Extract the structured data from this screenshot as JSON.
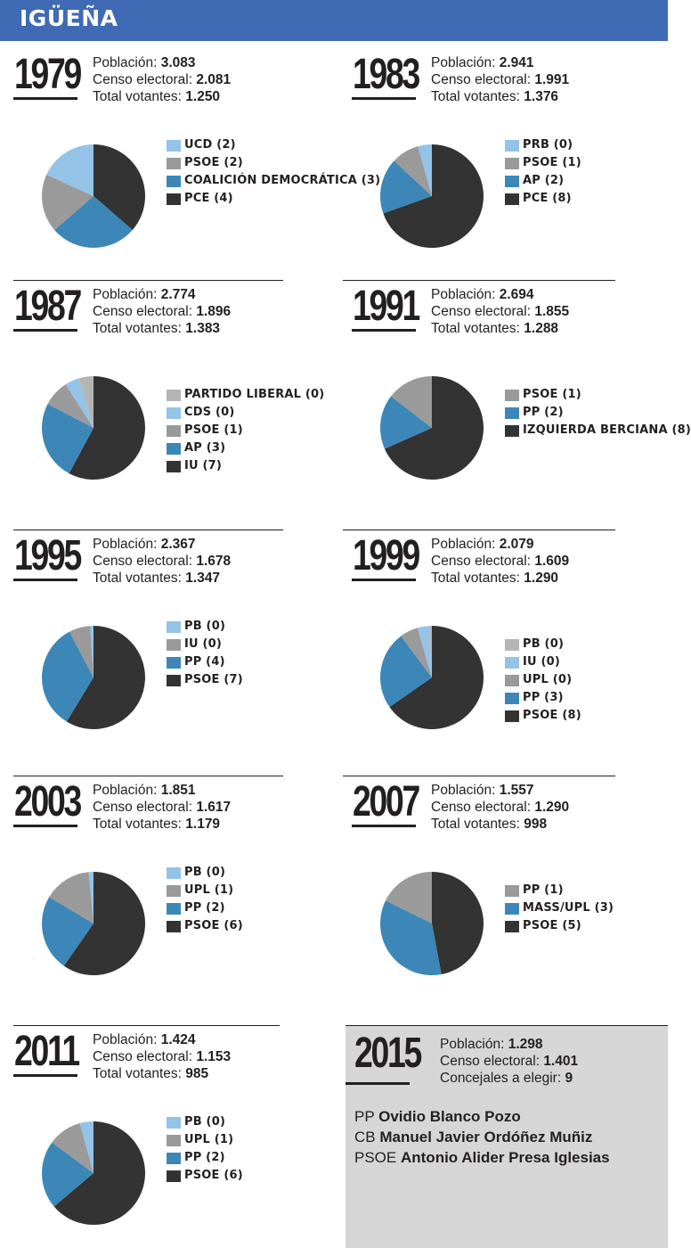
{
  "header": {
    "title": "IGÜEÑA"
  },
  "labels": {
    "poblacion": "Población:",
    "censo": "Censo electoral:",
    "votantes": "Total votantes:",
    "concejales": "Concejales a elegir:"
  },
  "colors": {
    "banner": "#3f6ab4",
    "light_blue": "#94c3e8",
    "light_gray": "#b5b5b5",
    "gray": "#9a9a9a",
    "mid_blue": "#3c87b8",
    "dark": "#333333",
    "panel_2015": "#d6d6d6"
  },
  "chart_data": [
    {
      "type": "pie",
      "year": "1979",
      "poblacion": "3.083",
      "censo": "2.081",
      "votantes": "1.250",
      "slices": [
        {
          "label": "UCD (2)",
          "value": 2,
          "color": "#94c3e8"
        },
        {
          "label": "PSOE (2)",
          "value": 2,
          "color": "#9a9a9a"
        },
        {
          "label": "COALICIÓN DEMOCRÁTICA (3)",
          "value": 3,
          "color": "#3c87b8"
        },
        {
          "label": "PCE (4)",
          "value": 4,
          "color": "#333333"
        }
      ]
    },
    {
      "type": "pie",
      "year": "1983",
      "poblacion": "2.941",
      "censo": "1.991",
      "votantes": "1.376",
      "slices": [
        {
          "label": "PRB (0)",
          "value": 0.5,
          "color": "#94c3e8"
        },
        {
          "label": "PSOE (1)",
          "value": 1,
          "color": "#9a9a9a"
        },
        {
          "label": "AP (2)",
          "value": 2,
          "color": "#3c87b8"
        },
        {
          "label": "PCE (8)",
          "value": 8,
          "color": "#333333"
        }
      ]
    },
    {
      "type": "pie",
      "year": "1987",
      "poblacion": "2.774",
      "censo": "1.896",
      "votantes": "1.383",
      "slices": [
        {
          "label": "PARTIDO LIBERAL (0)",
          "value": 0.55,
          "color": "#b5b5b5"
        },
        {
          "label": "CDS (0)",
          "value": 0.55,
          "color": "#94c3e8"
        },
        {
          "label": "PSOE (1)",
          "value": 1,
          "color": "#9a9a9a"
        },
        {
          "label": "AP (3)",
          "value": 3,
          "color": "#3c87b8"
        },
        {
          "label": "IU (7)",
          "value": 7,
          "color": "#333333"
        }
      ]
    },
    {
      "type": "pie",
      "year": "1991",
      "poblacion": "2.694",
      "censo": "1.855",
      "votantes": "1.288",
      "slices": [
        {
          "label": "PSOE (1)",
          "value": 1.7,
          "color": "#9a9a9a"
        },
        {
          "label": "PP (2)",
          "value": 2,
          "color": "#3c87b8"
        },
        {
          "label": "IZQUIERDA BERCIANA (8)",
          "value": 8,
          "color": "#333333"
        }
      ]
    },
    {
      "type": "pie",
      "year": "1995",
      "poblacion": "2.367",
      "censo": "1.678",
      "votantes": "1.347",
      "slices": [
        {
          "label": "PB (0)",
          "value": 0.12,
          "color": "#94c3e8"
        },
        {
          "label": "IU (0)",
          "value": 0.8,
          "color": "#9a9a9a"
        },
        {
          "label": "PP (4)",
          "value": 4,
          "color": "#3c87b8"
        },
        {
          "label": "PSOE (7)",
          "value": 7,
          "color": "#333333"
        }
      ]
    },
    {
      "type": "pie",
      "year": "1999",
      "poblacion": "2.079",
      "censo": "1.609",
      "votantes": "1.290",
      "slices": [
        {
          "label": "PB (0)",
          "value": 0.1,
          "color": "#b5b5b5"
        },
        {
          "label": "IU (0)",
          "value": 0.45,
          "color": "#94c3e8"
        },
        {
          "label": "UPL (0)",
          "value": 0.7,
          "color": "#9a9a9a"
        },
        {
          "label": "PP (3)",
          "value": 3,
          "color": "#3c87b8"
        },
        {
          "label": "PSOE (8)",
          "value": 8,
          "color": "#333333"
        }
      ]
    },
    {
      "type": "pie",
      "year": "2003",
      "poblacion": "1.851",
      "censo": "1.617",
      "votantes": "1.179",
      "slices": [
        {
          "label": "PB (0)",
          "value": 0.15,
          "color": "#94c3e8"
        },
        {
          "label": "UPL (1)",
          "value": 1.5,
          "color": "#9a9a9a"
        },
        {
          "label": "PP (2)",
          "value": 2.4,
          "color": "#3c87b8"
        },
        {
          "label": "PSOE (6)",
          "value": 6,
          "color": "#333333"
        }
      ]
    },
    {
      "type": "pie",
      "year": "2007",
      "poblacion": "1.557",
      "censo": "1.290",
      "votantes": "998",
      "slices": [
        {
          "label": "PP (1)",
          "value": 1.5,
          "color": "#9a9a9a"
        },
        {
          "label": "MASS/UPL (3)",
          "value": 3,
          "color": "#3c87b8"
        },
        {
          "label": "PSOE (5)",
          "value": 4,
          "color": "#333333"
        }
      ]
    },
    {
      "type": "pie",
      "year": "2011",
      "poblacion": "1.424",
      "censo": "1.153",
      "votantes": "985",
      "slices": [
        {
          "label": "PB (0)",
          "value": 0.4,
          "color": "#94c3e8"
        },
        {
          "label": "UPL (1)",
          "value": 1,
          "color": "#9a9a9a"
        },
        {
          "label": "PP (2)",
          "value": 2,
          "color": "#3c87b8"
        },
        {
          "label": "PSOE (6)",
          "value": 6,
          "color": "#333333"
        }
      ]
    }
  ],
  "election_2015": {
    "year": "2015",
    "poblacion": "1.298",
    "censo": "1.401",
    "concejales": "9",
    "candidates": [
      {
        "party": "PP",
        "name": "Ovidio Blanco Pozo"
      },
      {
        "party": "CB",
        "name": "Manuel Javier Ordóñez Muñiz"
      },
      {
        "party": "PSOE",
        "name": "Antonio Alider Presa Iglesias"
      }
    ]
  }
}
